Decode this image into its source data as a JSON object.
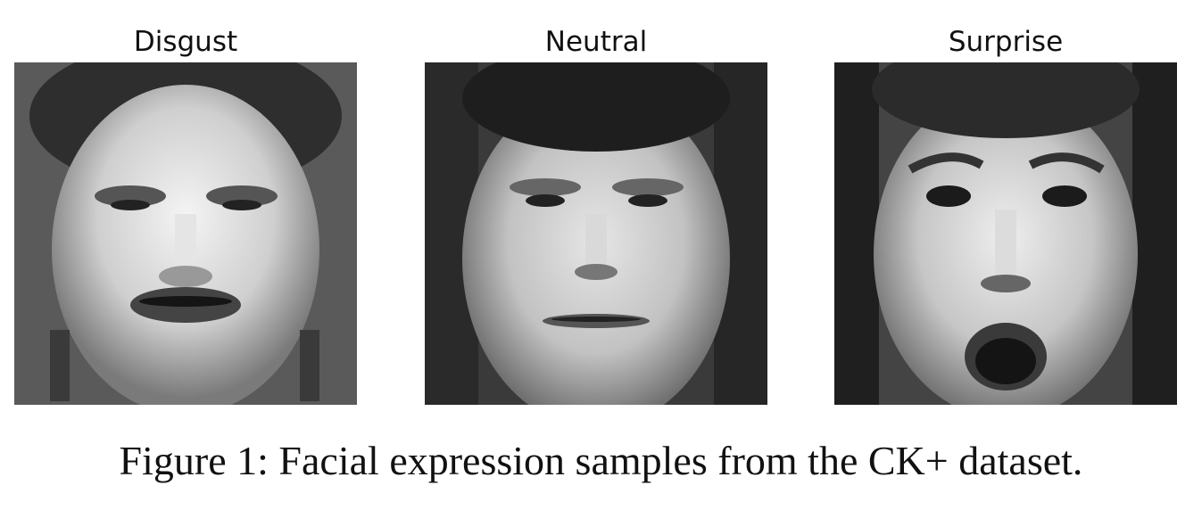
{
  "figure": {
    "panels": [
      {
        "title": "Disgust",
        "image_description": "grayscale face, disgust expression"
      },
      {
        "title": "Neutral",
        "image_description": "grayscale face, neutral expression"
      },
      {
        "title": "Surprise",
        "image_description": "grayscale face, surprise expression"
      }
    ],
    "caption": "Figure 1: Facial expression samples from the CK+ dataset."
  }
}
